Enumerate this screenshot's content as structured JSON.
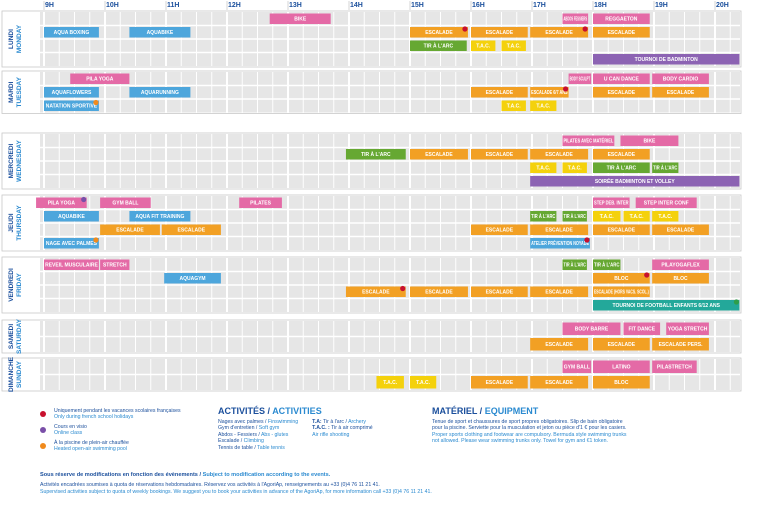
{
  "hours": [
    "9H",
    "10H",
    "11H",
    "12H",
    "13H",
    "14H",
    "15H",
    "16H",
    "17H",
    "18H",
    "19H",
    "20H"
  ],
  "days": [
    {
      "fr": "LUNDI",
      "en": "MONDAY",
      "events": [
        {
          "label": "BIKE",
          "start": 12.7,
          "end": 13.7,
          "row": 0,
          "color": "#e46aa6"
        },
        {
          "label": "ABDOS FESSIERS",
          "start": 17.5,
          "end": 17.92,
          "row": 0,
          "color": "#e46aa6"
        },
        {
          "label": "REGGAETON",
          "start": 18,
          "end": 18.93,
          "row": 0,
          "color": "#e46aa6"
        },
        {
          "label": "AQUA BOXING",
          "start": 9,
          "end": 9.9,
          "row": 1,
          "color": "#4da6dc"
        },
        {
          "label": "AQUABIKE",
          "start": 10.4,
          "end": 11.4,
          "row": 1,
          "color": "#4da6dc"
        },
        {
          "label": "ESCALADE",
          "start": 15,
          "end": 15.95,
          "row": 1,
          "color": "#f2a024",
          "dot": "#c8102e"
        },
        {
          "label": "ESCALADE",
          "start": 16,
          "end": 16.93,
          "row": 1,
          "color": "#f2a024"
        },
        {
          "label": "ESCALADE",
          "start": 16.97,
          "end": 17.92,
          "row": 1,
          "color": "#f2a024",
          "dot": "#c8102e"
        },
        {
          "label": "ESCALADE",
          "start": 18,
          "end": 18.93,
          "row": 1,
          "color": "#f2a024"
        },
        {
          "label": "TIR À L'ARC",
          "start": 15,
          "end": 15.93,
          "row": 2,
          "color": "#66a832"
        },
        {
          "label": "T.A.C.",
          "start": 16,
          "end": 16.4,
          "row": 2,
          "color": "#f4d10c"
        },
        {
          "label": "T.A.C.",
          "start": 16.5,
          "end": 16.9,
          "row": 2,
          "color": "#f4d10c"
        },
        {
          "label": "TOURNOI DE BADMINTON",
          "start": 18,
          "end": 20.4,
          "row": 3,
          "color": "#8c63b3"
        }
      ]
    },
    {
      "fr": "MARDI",
      "en": "TUESDAY",
      "events": [
        {
          "label": "PILA YOGA",
          "start": 9.43,
          "end": 10.4,
          "row": 0,
          "color": "#e46aa6"
        },
        {
          "label": "BODY SCULPT",
          "start": 17.6,
          "end": 17.97,
          "row": 0,
          "color": "#e46aa6"
        },
        {
          "label": "U CAN DANCE",
          "start": 18,
          "end": 18.93,
          "row": 0,
          "color": "#e46aa6"
        },
        {
          "label": "BODY CARDIO",
          "start": 18.97,
          "end": 19.9,
          "row": 0,
          "color": "#e46aa6"
        },
        {
          "label": "AQUAFLOWERS",
          "start": 9,
          "end": 9.9,
          "row": 1,
          "color": "#4da6dc"
        },
        {
          "label": "AQUARUNNING",
          "start": 10.4,
          "end": 11.4,
          "row": 1,
          "color": "#4da6dc"
        },
        {
          "label": "ESCALADE",
          "start": 16,
          "end": 16.93,
          "row": 1,
          "color": "#f2a024"
        },
        {
          "label": "ESCALADE 6/7 ANS",
          "start": 16.97,
          "end": 17.6,
          "row": 1,
          "color": "#f2a024",
          "dot": "#c8102e"
        },
        {
          "label": "ESCALADE",
          "start": 18,
          "end": 18.93,
          "row": 1,
          "color": "#f2a024"
        },
        {
          "label": "ESCALADE",
          "start": 18.97,
          "end": 19.9,
          "row": 1,
          "color": "#f2a024"
        },
        {
          "label": "NATATION SPORTIVE",
          "start": 9,
          "end": 9.9,
          "row": 2,
          "color": "#4da6dc",
          "dot": "#f08a1c"
        },
        {
          "label": "T.A.C.",
          "start": 16.5,
          "end": 16.9,
          "row": 2,
          "color": "#f4d10c"
        },
        {
          "label": "T.A.C.",
          "start": 16.97,
          "end": 17.4,
          "row": 2,
          "color": "#f4d10c"
        }
      ]
    },
    {
      "fr": "MERCREDI",
      "en": "WEDNESDAY",
      "events": [
        {
          "label": "PILATES AVEC MATÉRIEL",
          "start": 17.5,
          "end": 18.35,
          "row": 0,
          "color": "#e46aa6"
        },
        {
          "label": "BIKE",
          "start": 18.45,
          "end": 19.4,
          "row": 0,
          "color": "#e46aa6"
        },
        {
          "label": "TIR À L'ARC",
          "start": 13.95,
          "end": 14.93,
          "row": 1,
          "color": "#66a832"
        },
        {
          "label": "ESCALADE",
          "start": 15,
          "end": 15.95,
          "row": 1,
          "color": "#f2a024"
        },
        {
          "label": "ESCALADE",
          "start": 16,
          "end": 16.93,
          "row": 1,
          "color": "#f2a024"
        },
        {
          "label": "ESCALADE",
          "start": 16.97,
          "end": 17.92,
          "row": 1,
          "color": "#f2a024"
        },
        {
          "label": "ESCALADE",
          "start": 18,
          "end": 18.93,
          "row": 1,
          "color": "#f2a024"
        },
        {
          "label": "T.A.C.",
          "start": 16.97,
          "end": 17.4,
          "row": 2,
          "color": "#f4d10c"
        },
        {
          "label": "T.A.C.",
          "start": 17.5,
          "end": 17.9,
          "row": 2,
          "color": "#f4d10c"
        },
        {
          "label": "TIR À L'ARC",
          "start": 18,
          "end": 18.93,
          "row": 2,
          "color": "#66a832"
        },
        {
          "label": "TIR À L'ARC",
          "start": 18.97,
          "end": 19.4,
          "row": 2,
          "color": "#66a832"
        },
        {
          "label": "SOIRÉE BADMINTON ET VOLLEY",
          "start": 16.97,
          "end": 20.4,
          "row": 3,
          "color": "#8c63b3"
        }
      ]
    },
    {
      "fr": "JEUDI",
      "en": "THURSDAY",
      "events": [
        {
          "label": "PILA YOGA",
          "start": 8.87,
          "end": 9.7,
          "row": 0,
          "color": "#e46aa6",
          "dot": "#7a4fa8"
        },
        {
          "label": "GYM BALL",
          "start": 9.92,
          "end": 10.75,
          "row": 0,
          "color": "#e46aa6"
        },
        {
          "label": "PILATES",
          "start": 12.2,
          "end": 12.9,
          "row": 0,
          "color": "#e46aa6"
        },
        {
          "label": "STEP DEB. INTER",
          "start": 18,
          "end": 18.6,
          "row": 0,
          "color": "#e46aa6"
        },
        {
          "label": "STEP INTER CONF",
          "start": 18.7,
          "end": 19.7,
          "row": 0,
          "color": "#e46aa6"
        },
        {
          "label": "AQUABIKE",
          "start": 9,
          "end": 9.9,
          "row": 1,
          "color": "#4da6dc"
        },
        {
          "label": "AQUA FIT TRAINING",
          "start": 10.4,
          "end": 11.4,
          "row": 1,
          "color": "#4da6dc"
        },
        {
          "label": "TIR À L'ARC",
          "start": 16.97,
          "end": 17.4,
          "row": 1,
          "color": "#66a832"
        },
        {
          "label": "TIR À L'ARC",
          "start": 17.5,
          "end": 17.9,
          "row": 1,
          "color": "#66a832"
        },
        {
          "label": "T.A.C.",
          "start": 18,
          "end": 18.45,
          "row": 1,
          "color": "#f4d10c"
        },
        {
          "label": "T.A.C.",
          "start": 18.5,
          "end": 18.93,
          "row": 1,
          "color": "#f4d10c"
        },
        {
          "label": "T.A.C.",
          "start": 18.97,
          "end": 19.4,
          "row": 1,
          "color": "#f4d10c"
        },
        {
          "label": "ESCALADE",
          "start": 9.92,
          "end": 10.9,
          "row": 2,
          "color": "#f2a024"
        },
        {
          "label": "ESCALADE",
          "start": 10.93,
          "end": 11.9,
          "row": 2,
          "color": "#f2a024"
        },
        {
          "label": "ESCALADE",
          "start": 16,
          "end": 16.93,
          "row": 2,
          "color": "#f2a024"
        },
        {
          "label": "ESCALADE",
          "start": 16.97,
          "end": 17.92,
          "row": 2,
          "color": "#f2a024"
        },
        {
          "label": "ESCALADE",
          "start": 18,
          "end": 18.93,
          "row": 2,
          "color": "#f2a024"
        },
        {
          "label": "ESCALADE",
          "start": 18.97,
          "end": 19.9,
          "row": 2,
          "color": "#f2a024"
        },
        {
          "label": "NAGE AVEC PALMES",
          "start": 9,
          "end": 9.9,
          "row": 3,
          "color": "#4da6dc",
          "dot": "#f08a1c"
        },
        {
          "label": "ATELIER PRÉVENTION NOYADE",
          "start": 16.97,
          "end": 17.95,
          "row": 3,
          "color": "#4da6dc",
          "dot": "#c8102e"
        }
      ]
    },
    {
      "fr": "VENDREDI",
      "en": "FRIDAY",
      "events": [
        {
          "label": "REVEIL MUSCULAIRE",
          "start": 9,
          "end": 9.9,
          "row": 0,
          "color": "#e46aa6"
        },
        {
          "label": "STRETCH",
          "start": 9.92,
          "end": 10.4,
          "row": 0,
          "color": "#e46aa6"
        },
        {
          "label": "TIR À L'ARC",
          "start": 17.5,
          "end": 17.9,
          "row": 0,
          "color": "#66a832"
        },
        {
          "label": "TIR À L'ARC",
          "start": 18,
          "end": 18.45,
          "row": 0,
          "color": "#66a832"
        },
        {
          "label": "PILAYOGAFLEX",
          "start": 18.97,
          "end": 19.9,
          "row": 0,
          "color": "#e46aa6"
        },
        {
          "label": "AQUAGYM",
          "start": 10.97,
          "end": 11.9,
          "row": 1,
          "color": "#4da6dc"
        },
        {
          "label": "BLOC",
          "start": 18,
          "end": 18.93,
          "row": 1,
          "color": "#f2a024",
          "dot": "#c8102e"
        },
        {
          "label": "BLOC",
          "start": 18.97,
          "end": 19.9,
          "row": 1,
          "color": "#f2a024"
        },
        {
          "label": "ESCALADE",
          "start": 13.95,
          "end": 14.93,
          "row": 2,
          "color": "#f2a024",
          "dot": "#c8102e"
        },
        {
          "label": "ESCALADE",
          "start": 15,
          "end": 15.95,
          "row": 2,
          "color": "#f2a024"
        },
        {
          "label": "ESCALADE",
          "start": 16,
          "end": 16.93,
          "row": 2,
          "color": "#f2a024"
        },
        {
          "label": "ESCALADE",
          "start": 16.97,
          "end": 17.92,
          "row": 2,
          "color": "#f2a024"
        },
        {
          "label": "ESCALADE (HORS VACS. SCOL.)",
          "start": 18,
          "end": 18.93,
          "row": 2,
          "color": "#f2a024"
        },
        {
          "label": "TOURNOI DE FOOTBALL ENFANTS 6/12 ANS",
          "start": 18,
          "end": 20.4,
          "row": 3,
          "color": "#23a89a",
          "dot": "#2e9e4a"
        }
      ]
    },
    {
      "fr": "SAMEDI",
      "en": "SATURDAY",
      "events": [
        {
          "label": "BODY BARRE",
          "start": 17.5,
          "end": 18.45,
          "row": 0,
          "color": "#e46aa6"
        },
        {
          "label": "FIT DANCE",
          "start": 18.5,
          "end": 19.1,
          "row": 0,
          "color": "#e46aa6"
        },
        {
          "label": "YOGA STRETCH",
          "start": 19.2,
          "end": 19.9,
          "row": 0,
          "color": "#e46aa6"
        },
        {
          "label": "ESCALADE",
          "start": 16.97,
          "end": 17.92,
          "row": 1,
          "color": "#f2a024"
        },
        {
          "label": "ESCALADE",
          "start": 18,
          "end": 18.93,
          "row": 1,
          "color": "#f2a024"
        },
        {
          "label": "ESCALADE PERS.",
          "start": 18.97,
          "end": 19.9,
          "row": 1,
          "color": "#f2a024"
        }
      ]
    },
    {
      "fr": "DIMANCHE",
      "en": "SUNDAY",
      "events": [
        {
          "label": "GYM BALL",
          "start": 17.5,
          "end": 17.97,
          "row": 0,
          "color": "#e46aa6"
        },
        {
          "label": "LATINO",
          "start": 18,
          "end": 18.93,
          "row": 0,
          "color": "#e46aa6"
        },
        {
          "label": "PILASTRETCH",
          "start": 18.97,
          "end": 19.7,
          "row": 0,
          "color": "#e46aa6"
        },
        {
          "label": "T.A.C.",
          "start": 14.45,
          "end": 14.9,
          "row": 1,
          "color": "#f4d10c"
        },
        {
          "label": "T.A.C.",
          "start": 15,
          "end": 15.43,
          "row": 1,
          "color": "#f4d10c"
        },
        {
          "label": "ESCALADE",
          "start": 16,
          "end": 16.93,
          "row": 1,
          "color": "#f2a024"
        },
        {
          "label": "ESCALADE",
          "start": 16.97,
          "end": 17.92,
          "row": 1,
          "color": "#f2a024"
        },
        {
          "label": "BLOC",
          "start": 18,
          "end": 18.93,
          "row": 1,
          "color": "#f2a024"
        }
      ]
    }
  ],
  "legend": [
    {
      "color": "#c8102e",
      "fr": "Uniquement pendant les vacances scolaires françaises",
      "en": "Only during french school holidays"
    },
    {
      "color": "#7a4fa8",
      "fr": "Cours en visio",
      "en": "Online class"
    },
    {
      "color": "#f08a1c",
      "fr": "À la piscine de plein-air chauffée",
      "en": "Heated open-air swimming pool"
    }
  ],
  "activities": {
    "fr": "ACTIVITÉS",
    "en": "ACTIVITIES",
    "col1": [
      [
        "Nages avec palmes",
        "Finswimming"
      ],
      [
        "Gym d'entretien",
        "Soft gym"
      ],
      [
        "Abdos - Fessiers",
        "Abs - glutes"
      ],
      [
        "Escalade",
        "Climbing"
      ],
      [
        "Tennis de table",
        "Table tennis"
      ]
    ],
    "col2": [
      [
        "T.A:",
        "Tir à l'arc",
        "Archery"
      ],
      [
        "T.A.C. :",
        "Tir à air comprimé",
        "Air rifle shooting"
      ]
    ]
  },
  "equipment": {
    "fr": "MATÉRIEL",
    "en": "EQUIPMENT",
    "fr_text": "Tenue de sport et chaussures de sport propres obligatoires. Slip de bain obligatoire pour la piscine. Serviette pour la musculation et jeton ou pièce d'1 € pour les casiers.",
    "en_text": "Proper sports clothing and footwear are compulsory. Bermuda style swimming trunks not allowed. Please wear swimming trunks only. Towel for gym and €1 token."
  },
  "footer": {
    "fr": "Sous réserve de modifications en fonction des évènements",
    "en": "Subject to modification according to the events.",
    "note_fr": "Activités encadrées soumises à quota de réservations hebdomadaires. Réservez vos activités à l'AgoriAp, renseignements au +33 (0)4 76 11 21 41.",
    "note_en": "Supervised activities subject to quota of weekly bookings. We suggest you to book your activities in advance of the AgoriAp, for more information call +33 (0)4 76 11 21 41."
  }
}
